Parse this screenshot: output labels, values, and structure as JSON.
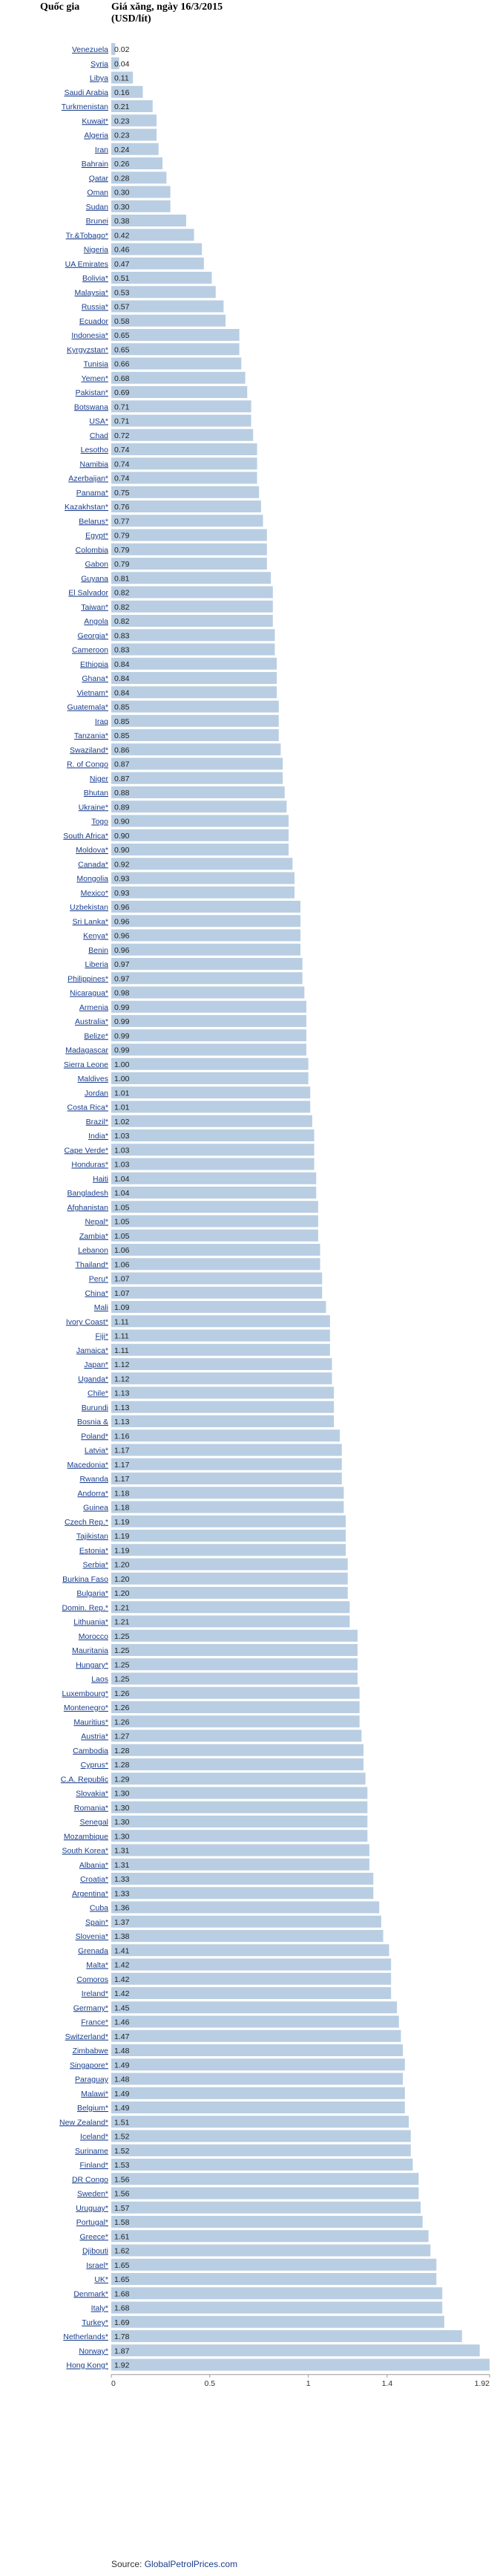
{
  "header": {
    "country_col": "Quốc gia",
    "value_col_line1": "Giá xăng, ngày 16/3/2015",
    "value_col_line2": "(USD/lít)"
  },
  "source": {
    "prefix": "Source: ",
    "link": "GlobalPetrolPrices.com"
  },
  "colors": {
    "bar": "#b9cee2",
    "link": "#1a3e8c"
  },
  "chart_data": {
    "type": "bar",
    "orientation": "horizontal",
    "xlim": [
      0,
      1.92
    ],
    "xticks": [
      "0",
      "0.5",
      "1",
      "1.4",
      "1.92"
    ],
    "xtick_values": [
      0,
      0.5,
      1,
      1.4,
      1.92
    ],
    "categories": [
      "Venezuela",
      "Syria",
      "Libya",
      "Saudi Arabia",
      "Turkmenistan",
      "Kuwait*",
      "Algeria",
      "Iran",
      "Bahrain",
      "Qatar",
      "Oman",
      "Sudan",
      "Brunei",
      "Tr.&Tobago*",
      "Nigeria",
      "UA Emirates",
      "Bolivia*",
      "Malaysia*",
      "Russia*",
      "Ecuador",
      "Indonesia*",
      "Kyrgyzstan*",
      "Tunisia",
      "Yemen*",
      "Pakistan*",
      "Botswana",
      "USA*",
      "Chad",
      "Lesotho",
      "Namibia",
      "Azerbaijan*",
      "Panama*",
      "Kazakhstan*",
      "Belarus*",
      "Egypt*",
      "Colombia",
      "Gabon",
      "Guyana",
      "El Salvador",
      "Taiwan*",
      "Angola",
      "Georgia*",
      "Cameroon",
      "Ethiopia",
      "Ghana*",
      "Vietnam*",
      "Guatemala*",
      "Iraq",
      "Tanzania*",
      "Swaziland*",
      "R. of Congo",
      "Niger",
      "Bhutan",
      "Ukraine*",
      "Togo",
      "South Africa*",
      "Moldova*",
      "Canada*",
      "Mongolia",
      "Mexico*",
      "Uzbekistan",
      "Sri Lanka*",
      "Kenya*",
      "Benin",
      "Liberia",
      "Philippines*",
      "Nicaragua*",
      "Armenia",
      "Australia*",
      "Belize*",
      "Madagascar",
      "Sierra Leone",
      "Maldives",
      "Jordan",
      "Costa Rica*",
      "Brazil*",
      "India*",
      "Cape Verde*",
      "Honduras*",
      "Haiti",
      "Bangladesh",
      "Afghanistan",
      "Nepal*",
      "Zambia*",
      "Lebanon",
      "Thailand*",
      "Peru*",
      "China*",
      "Mali",
      "Ivory Coast*",
      "Fiji*",
      "Jamaica*",
      "Japan*",
      "Uganda*",
      "Chile*",
      "Burundi",
      "Bosnia &",
      "Poland*",
      "Latvia*",
      "Macedonia*",
      "Rwanda",
      "Andorra*",
      "Guinea",
      "Czech Rep.*",
      "Tajikistan",
      "Estonia*",
      "Serbia*",
      "Burkina Faso",
      "Bulgaria*",
      "Domin. Rep.*",
      "Lithuania*",
      "Morocco",
      "Mauritania",
      "Hungary*",
      "Laos",
      "Luxembourg*",
      "Montenegro*",
      "Mauritius*",
      "Austria*",
      "Cambodia",
      "Cyprus*",
      "C.A. Republic",
      "Slovakia*",
      "Romania*",
      "Senegal",
      "Mozambique",
      "South Korea*",
      "Albania*",
      "Croatia*",
      "Argentina*",
      "Cuba",
      "Spain*",
      "Slovenia*",
      "Grenada",
      "Malta*",
      "Comoros",
      "Ireland*",
      "Germany*",
      "France*",
      "Switzerland*",
      "Zimbabwe",
      "Singapore*",
      "Paraguay",
      "Malawi*",
      "Belgium*",
      "New Zealand*",
      "Iceland*",
      "Suriname",
      "Finland*",
      "DR Congo",
      "Sweden*",
      "Uruguay*",
      "Portugal*",
      "Greece*",
      "Djibouti",
      "Israel*",
      "UK*",
      "Denmark*",
      "Italy*",
      "Turkey*",
      "Netherlands*",
      "Norway*",
      "Hong Kong*"
    ],
    "values": [
      0.02,
      0.04,
      0.11,
      0.16,
      0.21,
      0.23,
      0.23,
      0.24,
      0.26,
      0.28,
      0.3,
      0.3,
      0.38,
      0.42,
      0.46,
      0.47,
      0.51,
      0.53,
      0.57,
      0.58,
      0.65,
      0.65,
      0.66,
      0.68,
      0.69,
      0.71,
      0.71,
      0.72,
      0.74,
      0.74,
      0.74,
      0.75,
      0.76,
      0.77,
      0.79,
      0.79,
      0.79,
      0.81,
      0.82,
      0.82,
      0.82,
      0.83,
      0.83,
      0.84,
      0.84,
      0.84,
      0.85,
      0.85,
      0.85,
      0.86,
      0.87,
      0.87,
      0.88,
      0.89,
      0.9,
      0.9,
      0.9,
      0.92,
      0.93,
      0.93,
      0.96,
      0.96,
      0.96,
      0.96,
      0.97,
      0.97,
      0.98,
      0.99,
      0.99,
      0.99,
      0.99,
      1.0,
      1.0,
      1.01,
      1.01,
      1.02,
      1.03,
      1.03,
      1.03,
      1.04,
      1.04,
      1.05,
      1.05,
      1.05,
      1.06,
      1.06,
      1.07,
      1.07,
      1.09,
      1.11,
      1.11,
      1.11,
      1.12,
      1.12,
      1.13,
      1.13,
      1.13,
      1.16,
      1.17,
      1.17,
      1.17,
      1.18,
      1.18,
      1.19,
      1.19,
      1.19,
      1.2,
      1.2,
      1.2,
      1.21,
      1.21,
      1.25,
      1.25,
      1.25,
      1.25,
      1.26,
      1.26,
      1.26,
      1.27,
      1.28,
      1.28,
      1.29,
      1.3,
      1.3,
      1.3,
      1.3,
      1.31,
      1.31,
      1.33,
      1.33,
      1.36,
      1.37,
      1.38,
      1.41,
      1.42,
      1.42,
      1.42,
      1.45,
      1.46,
      1.47,
      1.48,
      1.49,
      1.48,
      1.49,
      1.49,
      1.51,
      1.52,
      1.52,
      1.53,
      1.56,
      1.56,
      1.57,
      1.58,
      1.61,
      1.62,
      1.65,
      1.65,
      1.68,
      1.68,
      1.69,
      1.78,
      1.87,
      1.92
    ]
  }
}
